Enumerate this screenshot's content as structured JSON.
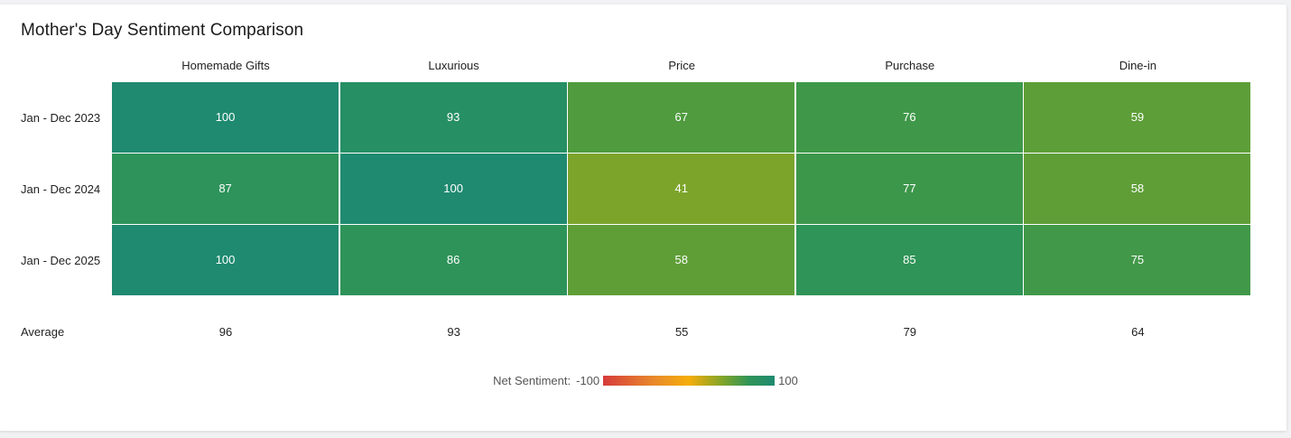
{
  "chart_data": {
    "type": "heatmap",
    "title": "Mother's Day Sentiment Comparison",
    "columns": [
      "Homemade Gifts",
      "Luxurious",
      "Price",
      "Purchase",
      "Dine-in"
    ],
    "rows": [
      "Jan - Dec 2023",
      "Jan - Dec 2024",
      "Jan - Dec 2025"
    ],
    "values": [
      [
        100,
        93,
        67,
        76,
        59
      ],
      [
        87,
        100,
        41,
        77,
        58
      ],
      [
        100,
        86,
        58,
        85,
        75
      ]
    ],
    "average_label": "Average",
    "averages": [
      96,
      93,
      55,
      79,
      64
    ],
    "legend": {
      "label": "Net Sentiment:",
      "min_label": "-100",
      "max_label": "100",
      "min": -100,
      "max": 100
    },
    "colors": {
      "low": "#d63b3b",
      "mid": "#f5ad0a",
      "high": "#1f8a70"
    }
  }
}
